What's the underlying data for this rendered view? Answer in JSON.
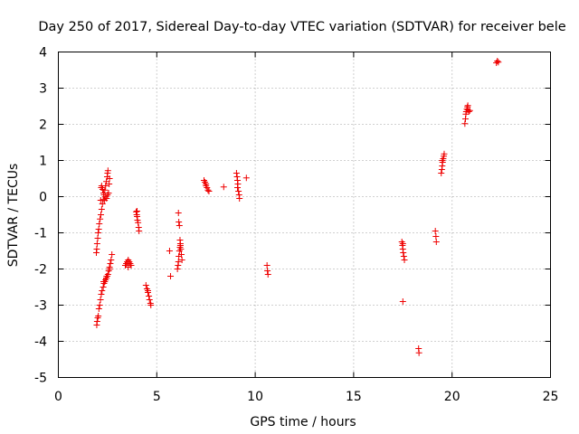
{
  "chart_data": {
    "type": "scatter",
    "title": "Day 250 of 2017, Sidereal Day-to-day VTEC variation (SDTVAR) for receiver bele",
    "xlabel": "GPS time / hours",
    "ylabel": "SDTVAR / TECUs",
    "xlim": [
      0,
      25
    ],
    "ylim": [
      -5,
      4
    ],
    "xticks": [
      "0",
      "5",
      "10",
      "15",
      "20",
      "25"
    ],
    "yticks": [
      "-5",
      "-4",
      "-3",
      "-2",
      "-1",
      "0",
      "1",
      "2",
      "3",
      "4"
    ],
    "grid": true,
    "marker": "+",
    "series_color": "#ee0000",
    "series": [
      {
        "name": "SDTVAR",
        "points": [
          [
            1.95,
            -3.55
          ],
          [
            1.97,
            -3.45
          ],
          [
            2.0,
            -3.35
          ],
          [
            2.03,
            -3.3
          ],
          [
            2.06,
            -3.1
          ],
          [
            2.1,
            -3.0
          ],
          [
            2.14,
            -2.85
          ],
          [
            2.18,
            -2.7
          ],
          [
            2.22,
            -2.6
          ],
          [
            2.28,
            -2.5
          ],
          [
            2.32,
            -2.4
          ],
          [
            2.36,
            -2.35
          ],
          [
            2.4,
            -2.3
          ],
          [
            2.44,
            -2.25
          ],
          [
            2.48,
            -2.2
          ],
          [
            2.52,
            -2.15
          ],
          [
            2.56,
            -2.05
          ],
          [
            2.6,
            -1.95
          ],
          [
            2.64,
            -1.85
          ],
          [
            2.68,
            -1.75
          ],
          [
            2.72,
            -1.6
          ],
          [
            2.3,
            -2.35
          ],
          [
            2.45,
            -2.2
          ],
          [
            2.6,
            -2.0
          ],
          [
            1.93,
            -1.55
          ],
          [
            1.95,
            -1.45
          ],
          [
            1.97,
            -1.3
          ],
          [
            2.0,
            -1.15
          ],
          [
            2.02,
            -1.0
          ],
          [
            2.05,
            -0.9
          ],
          [
            2.08,
            -0.75
          ],
          [
            2.12,
            -0.62
          ],
          [
            2.16,
            -0.5
          ],
          [
            2.2,
            -0.35
          ],
          [
            2.24,
            -0.2
          ],
          [
            2.28,
            -0.08
          ],
          [
            2.32,
            0.05
          ],
          [
            2.36,
            0.18
          ],
          [
            2.4,
            0.3
          ],
          [
            2.44,
            0.42
          ],
          [
            2.48,
            0.55
          ],
          [
            2.5,
            0.65
          ],
          [
            2.52,
            0.72
          ],
          [
            2.2,
            0.3
          ],
          [
            2.25,
            0.2
          ],
          [
            2.3,
            0.1
          ],
          [
            2.35,
            -0.1
          ],
          [
            2.4,
            0.0
          ],
          [
            2.45,
            -0.05
          ],
          [
            2.5,
            0.05
          ],
          [
            2.55,
            0.1
          ],
          [
            2.58,
            0.35
          ],
          [
            2.6,
            0.5
          ],
          [
            2.15,
            -0.1
          ],
          [
            2.18,
            0.25
          ],
          [
            3.4,
            -1.9
          ],
          [
            3.45,
            -1.85
          ],
          [
            3.5,
            -1.8
          ],
          [
            3.55,
            -1.75
          ],
          [
            3.6,
            -1.8
          ],
          [
            3.65,
            -1.85
          ],
          [
            3.7,
            -1.9
          ],
          [
            3.55,
            -1.95
          ],
          [
            3.95,
            -0.42
          ],
          [
            3.98,
            -0.5
          ],
          [
            4.0,
            -0.55
          ],
          [
            4.02,
            -0.65
          ],
          [
            4.05,
            -0.72
          ],
          [
            4.08,
            -0.85
          ],
          [
            4.1,
            -0.95
          ],
          [
            4.0,
            -0.4
          ],
          [
            4.45,
            -2.45
          ],
          [
            4.5,
            -2.55
          ],
          [
            4.55,
            -2.65
          ],
          [
            4.6,
            -2.75
          ],
          [
            4.63,
            -2.85
          ],
          [
            4.68,
            -2.95
          ],
          [
            4.7,
            -3.0
          ],
          [
            4.55,
            -2.6
          ],
          [
            5.65,
            -1.5
          ],
          [
            5.7,
            -2.2
          ],
          [
            6.05,
            -2.0
          ],
          [
            6.08,
            -1.9
          ],
          [
            6.1,
            -1.8
          ],
          [
            6.12,
            -1.65
          ],
          [
            6.15,
            -1.5
          ],
          [
            6.18,
            -1.4
          ],
          [
            6.2,
            -1.3
          ],
          [
            6.22,
            -1.45
          ],
          [
            6.25,
            -1.6
          ],
          [
            6.28,
            -1.75
          ],
          [
            6.1,
            -0.45
          ],
          [
            6.12,
            -0.7
          ],
          [
            6.15,
            -0.8
          ],
          [
            6.18,
            -1.2
          ],
          [
            6.2,
            -1.35
          ],
          [
            7.4,
            0.45
          ],
          [
            7.45,
            0.4
          ],
          [
            7.5,
            0.35
          ],
          [
            7.55,
            0.25
          ],
          [
            7.6,
            0.18
          ],
          [
            7.65,
            0.15
          ],
          [
            7.5,
            0.3
          ],
          [
            8.4,
            0.27
          ],
          [
            9.05,
            0.65
          ],
          [
            9.08,
            0.55
          ],
          [
            9.1,
            0.45
          ],
          [
            9.12,
            0.35
          ],
          [
            9.15,
            0.15
          ],
          [
            9.18,
            0.05
          ],
          [
            9.2,
            -0.05
          ],
          [
            9.1,
            0.25
          ],
          [
            9.55,
            0.52
          ],
          [
            10.6,
            -1.9
          ],
          [
            10.62,
            -2.05
          ],
          [
            10.65,
            -2.15
          ],
          [
            17.45,
            -1.25
          ],
          [
            17.48,
            -1.35
          ],
          [
            17.5,
            -1.45
          ],
          [
            17.52,
            -1.55
          ],
          [
            17.55,
            -1.65
          ],
          [
            17.58,
            -1.75
          ],
          [
            17.5,
            -1.3
          ],
          [
            17.5,
            -2.9
          ],
          [
            18.3,
            -4.2
          ],
          [
            18.32,
            -4.32
          ],
          [
            19.15,
            -0.95
          ],
          [
            19.18,
            -1.1
          ],
          [
            19.2,
            -1.25
          ],
          [
            19.45,
            0.65
          ],
          [
            19.48,
            0.75
          ],
          [
            19.5,
            0.85
          ],
          [
            19.52,
            0.95
          ],
          [
            19.55,
            1.05
          ],
          [
            19.58,
            1.12
          ],
          [
            19.6,
            1.18
          ],
          [
            19.5,
            1.0
          ],
          [
            20.65,
            2.02
          ],
          [
            20.68,
            2.15
          ],
          [
            20.7,
            2.28
          ],
          [
            20.72,
            2.35
          ],
          [
            20.75,
            2.42
          ],
          [
            20.78,
            2.48
          ],
          [
            20.8,
            2.4
          ],
          [
            20.85,
            2.35
          ],
          [
            20.9,
            2.38
          ],
          [
            20.8,
            2.52
          ],
          [
            22.25,
            3.7
          ],
          [
            22.3,
            3.75
          ],
          [
            22.35,
            3.72
          ]
        ]
      }
    ]
  }
}
